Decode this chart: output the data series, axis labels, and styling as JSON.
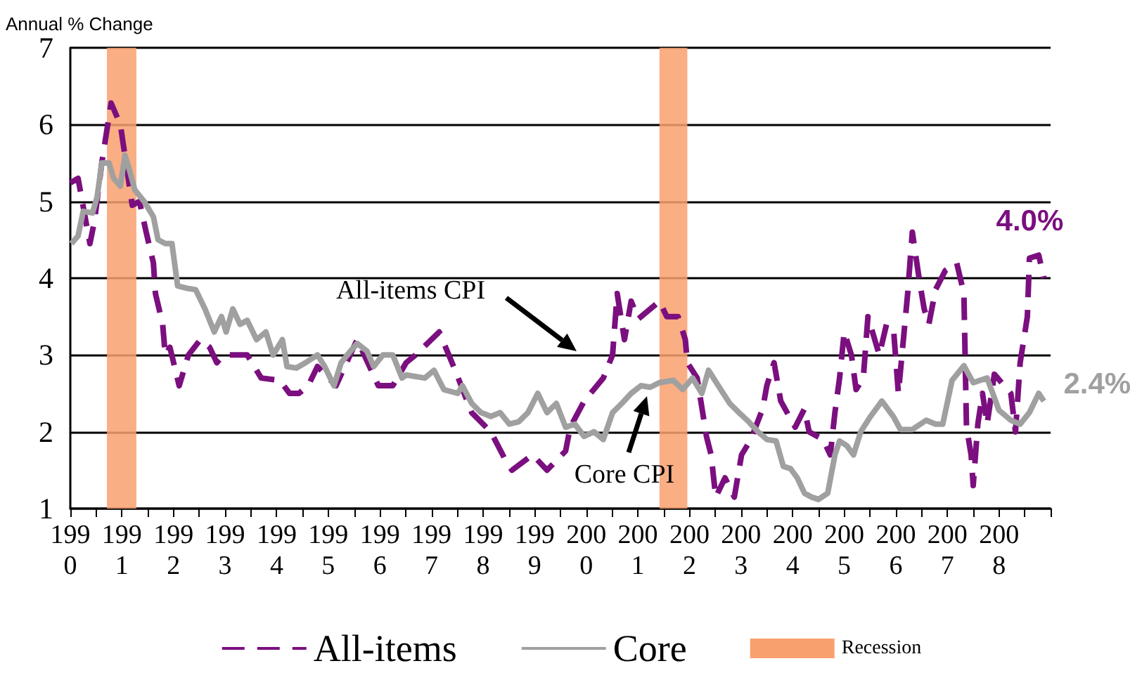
{
  "chart_data": {
    "type": "line",
    "ylabel": "Annual % Change",
    "xlim": [
      1990,
      2009
    ],
    "ylim": [
      1,
      7
    ],
    "yticks": [
      1,
      2,
      3,
      4,
      5,
      6,
      7
    ],
    "xticks": [
      1990,
      {
        "value": 1990.5,
        "label": null
      },
      1991,
      {
        "value": 1991.5,
        "label": null
      },
      1992,
      {
        "value": 1992.5,
        "label": null
      },
      1993,
      {
        "value": 1993.5,
        "label": null
      },
      1994,
      {
        "value": 1994.5,
        "label": null
      },
      1995,
      {
        "value": 1995.5,
        "label": null
      },
      1996,
      {
        "value": 1996.5,
        "label": null
      },
      1997,
      {
        "value": 1997.5,
        "label": null
      },
      1998,
      {
        "value": 1998.5,
        "label": null
      },
      1999,
      {
        "value": 1999.5,
        "label": null
      },
      2000,
      {
        "value": 2000.5,
        "label": null
      },
      2001,
      {
        "value": 2001.5,
        "label": null
      },
      2002,
      {
        "value": 2002.5,
        "label": null
      },
      2003,
      {
        "value": 2003.5,
        "label": null
      },
      2004,
      {
        "value": 2004.5,
        "label": null
      },
      2005,
      {
        "value": 2005.5,
        "label": null
      },
      2006,
      {
        "value": 2006.5,
        "label": null
      },
      2007,
      {
        "value": 2007.5,
        "label": null
      },
      2008,
      {
        "value": 2008.5,
        "label": null
      },
      {
        "value": 2009,
        "label": null
      }
    ],
    "grid": "y",
    "legend": "bottom",
    "marker": "none",
    "series": [
      {
        "name": "All-items",
        "color": "#7b0f7f",
        "line_style": "dashed",
        "x": [
          1990.0,
          1990.15,
          1990.38,
          1990.47,
          1990.61,
          1990.79,
          1990.97,
          1991.2,
          1991.34,
          1991.47,
          1991.61,
          1991.65,
          1991.79,
          1991.84,
          1991.93,
          1992.11,
          1992.29,
          1992.52,
          1992.7,
          1992.84,
          1992.97,
          1993.43,
          1993.7,
          1994.06,
          1994.25,
          1994.43,
          1994.61,
          1994.79,
          1995.15,
          1995.56,
          1995.97,
          1996.25,
          1996.51,
          1996.69,
          1997.15,
          1997.46,
          1997.78,
          1998.15,
          1998.42,
          1998.56,
          1998.96,
          1999.24,
          1999.6,
          1999.69,
          1999.96,
          2000.33,
          2000.51,
          2000.6,
          2000.74,
          2000.87,
          2001.01,
          2001.42,
          2001.56,
          2001.78,
          2001.92,
          2001.96,
          2002.15,
          2002.33,
          2002.42,
          2002.51,
          2002.69,
          2002.87,
          2003.01,
          2003.19,
          2003.42,
          2003.5,
          2003.64,
          2003.77,
          2004.05,
          2004.23,
          2004.32,
          2004.59,
          2004.73,
          2004.82,
          2004.91,
          2005.0,
          2005.14,
          2005.23,
          2005.37,
          2005.46,
          2005.68,
          2005.82,
          2005.96,
          2006.05,
          2006.23,
          2006.32,
          2006.46,
          2006.55,
          2006.64,
          2006.77,
          2006.96,
          2007.18,
          2007.32,
          2007.37,
          2007.46,
          2007.5,
          2007.59,
          2007.68,
          2007.77,
          2007.91,
          2008.23,
          2008.32,
          2008.41,
          2008.55,
          2008.59,
          2008.77,
          2008.87
        ],
        "values": [
          5.24,
          5.3,
          4.45,
          4.75,
          5.5,
          6.28,
          6.0,
          4.95,
          5.0,
          4.6,
          4.2,
          3.8,
          3.4,
          3.0,
          3.1,
          2.6,
          3.0,
          3.2,
          3.1,
          2.9,
          3.0,
          3.0,
          2.7,
          2.67,
          2.5,
          2.5,
          2.6,
          2.85,
          2.6,
          3.2,
          2.6,
          2.6,
          2.9,
          3.0,
          3.3,
          2.8,
          2.25,
          2.0,
          1.65,
          1.5,
          1.7,
          1.5,
          1.75,
          2.06,
          2.4,
          2.7,
          3.0,
          3.8,
          3.2,
          3.7,
          3.47,
          3.7,
          3.5,
          3.5,
          3.2,
          2.9,
          2.7,
          1.94,
          1.7,
          1.15,
          1.4,
          1.15,
          1.7,
          1.9,
          2.3,
          2.6,
          2.9,
          2.4,
          2.06,
          2.3,
          2.0,
          1.9,
          1.7,
          2.25,
          2.7,
          3.3,
          3.0,
          2.55,
          2.7,
          3.5,
          3.0,
          3.4,
          3.3,
          2.5,
          3.8,
          4.6,
          3.96,
          3.6,
          3.4,
          3.85,
          4.1,
          4.2,
          3.8,
          2.06,
          1.7,
          1.3,
          2.1,
          2.5,
          2.1,
          2.75,
          2.5,
          2.0,
          2.9,
          3.5,
          4.26,
          4.3,
          4.0
        ],
        "value_labels": [
          null,
          null,
          null,
          null,
          null,
          null,
          null,
          null,
          null,
          null,
          null,
          null,
          null,
          null,
          null,
          null,
          null,
          null,
          null,
          null,
          null,
          null,
          null,
          null,
          null,
          null,
          null,
          null,
          null,
          null,
          null,
          null,
          null,
          null,
          null,
          null,
          null,
          null,
          null,
          null,
          null,
          null,
          null,
          null,
          null,
          null,
          null,
          null,
          null,
          null,
          null,
          null,
          null,
          null,
          null,
          null,
          null,
          null,
          null,
          null,
          null,
          null,
          null,
          null,
          null,
          null,
          null,
          null,
          null,
          null,
          null,
          null,
          null,
          null,
          null,
          null,
          null,
          null,
          null,
          null,
          null,
          null,
          null,
          null,
          null,
          null,
          null,
          null,
          null,
          null,
          null,
          null,
          null,
          null,
          null,
          null,
          null,
          null,
          null,
          null,
          null,
          null,
          null,
          null,
          null,
          null,
          "4.0%"
        ]
      },
      {
        "name": "Core",
        "color": "#a0a0a0",
        "line_style": "solid",
        "x": [
          1990.02,
          1990.15,
          1990.25,
          1990.43,
          1990.52,
          1990.61,
          1990.75,
          1990.84,
          1990.97,
          1991.06,
          1991.15,
          1991.25,
          1991.43,
          1991.61,
          1991.7,
          1991.84,
          1991.97,
          1992.08,
          1992.25,
          1992.43,
          1992.61,
          1992.79,
          1992.93,
          1993.02,
          1993.15,
          1993.29,
          1993.43,
          1993.61,
          1993.79,
          1993.93,
          1994.11,
          1994.2,
          1994.38,
          1994.56,
          1994.79,
          1994.93,
          1995.11,
          1995.25,
          1995.43,
          1995.56,
          1995.75,
          1995.88,
          1996.06,
          1996.25,
          1996.43,
          1996.51,
          1996.87,
          1997.05,
          1997.24,
          1997.51,
          1997.6,
          1997.78,
          1997.96,
          1998.15,
          1998.33,
          1998.51,
          1998.69,
          1998.87,
          1999.06,
          1999.24,
          1999.42,
          1999.6,
          1999.78,
          1999.96,
          2000.15,
          2000.33,
          2000.51,
          2000.69,
          2000.87,
          2001.06,
          2001.24,
          2001.42,
          2001.69,
          2001.87,
          2002.06,
          2002.24,
          2002.37,
          2002.56,
          2002.78,
          2002.96,
          2003.15,
          2003.33,
          2003.5,
          2003.68,
          2003.82,
          2003.96,
          2004.09,
          2004.23,
          2004.37,
          2004.5,
          2004.68,
          2004.82,
          2004.91,
          2005.05,
          2005.18,
          2005.32,
          2005.5,
          2005.73,
          2005.96,
          2006.09,
          2006.32,
          2006.59,
          2006.77,
          2006.91,
          2007.09,
          2007.32,
          2007.5,
          2007.77,
          2008.0,
          2008.23,
          2008.41,
          2008.59,
          2008.77,
          2008.87
        ],
        "values": [
          4.45,
          4.55,
          4.87,
          4.85,
          5.06,
          5.5,
          5.5,
          5.3,
          5.2,
          5.6,
          5.4,
          5.15,
          5.0,
          4.8,
          4.5,
          4.45,
          4.45,
          3.9,
          3.87,
          3.85,
          3.6,
          3.3,
          3.5,
          3.3,
          3.6,
          3.4,
          3.45,
          3.2,
          3.3,
          3.0,
          3.2,
          2.85,
          2.83,
          2.9,
          3.0,
          2.85,
          2.6,
          2.9,
          3.05,
          3.15,
          3.05,
          2.85,
          3.0,
          3.0,
          2.7,
          2.74,
          2.7,
          2.8,
          2.55,
          2.5,
          2.6,
          2.37,
          2.25,
          2.2,
          2.25,
          2.1,
          2.13,
          2.25,
          2.5,
          2.25,
          2.37,
          2.06,
          2.1,
          1.94,
          2.0,
          1.9,
          2.25,
          2.37,
          2.5,
          2.6,
          2.58,
          2.64,
          2.67,
          2.55,
          2.7,
          2.5,
          2.8,
          2.6,
          2.37,
          2.25,
          2.13,
          2.0,
          1.9,
          1.88,
          1.55,
          1.52,
          1.4,
          1.2,
          1.15,
          1.12,
          1.2,
          1.7,
          1.88,
          1.82,
          1.7,
          2.0,
          2.19,
          2.4,
          2.19,
          2.03,
          2.03,
          2.15,
          2.1,
          2.1,
          2.67,
          2.86,
          2.64,
          2.7,
          2.28,
          2.15,
          2.1,
          2.25,
          2.5,
          2.4
        ],
        "value_labels": [
          null,
          null,
          null,
          null,
          null,
          null,
          null,
          null,
          null,
          null,
          null,
          null,
          null,
          null,
          null,
          null,
          null,
          null,
          null,
          null,
          null,
          null,
          null,
          null,
          null,
          null,
          null,
          null,
          null,
          null,
          null,
          null,
          null,
          null,
          null,
          null,
          null,
          null,
          null,
          null,
          null,
          null,
          null,
          null,
          null,
          null,
          null,
          null,
          null,
          null,
          null,
          null,
          null,
          null,
          null,
          null,
          null,
          null,
          null,
          null,
          null,
          null,
          null,
          null,
          null,
          null,
          null,
          null,
          null,
          null,
          null,
          null,
          null,
          null,
          null,
          null,
          null,
          null,
          null,
          null,
          null,
          null,
          null,
          null,
          null,
          null,
          null,
          null,
          null,
          null,
          null,
          null,
          null,
          null,
          null,
          null,
          null,
          null,
          null,
          null,
          null,
          null,
          null,
          null,
          null,
          null,
          null,
          null,
          null,
          null,
          null,
          null,
          null,
          "2.4%"
        ]
      }
    ],
    "bands": [
      {
        "axis": "x",
        "from": 1990.71,
        "to": 1991.28,
        "label": "Recession",
        "color": "#f9a06f"
      },
      {
        "axis": "x",
        "from": 2001.42,
        "to": 2001.96,
        "color": "#f9a06f"
      }
    ],
    "annotations": [
      "All-items CPI",
      "Core CPI"
    ]
  }
}
